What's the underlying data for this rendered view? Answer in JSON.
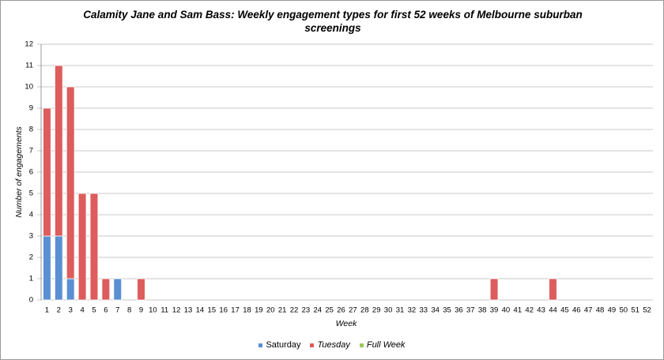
{
  "chart_data": {
    "type": "stacked_bar",
    "title": "Calamity Jane and Sam Bass: Weekly engagement types for first 52 weeks of Melbourne suburban screenings",
    "x_label": "Week",
    "y_label": "Number of engagements",
    "categories": [
      1,
      2,
      3,
      4,
      5,
      6,
      7,
      8,
      9,
      10,
      11,
      12,
      13,
      14,
      15,
      16,
      17,
      18,
      19,
      20,
      21,
      22,
      23,
      24,
      25,
      26,
      27,
      28,
      29,
      30,
      31,
      32,
      33,
      34,
      35,
      36,
      37,
      38,
      39,
      40,
      41,
      42,
      43,
      44,
      45,
      46,
      47,
      48,
      49,
      50,
      51,
      52
    ],
    "series": [
      {
        "name": "Saturday",
        "color": "#5b8fd3",
        "values": [
          3,
          3,
          1,
          0,
          0,
          0,
          1,
          0,
          0,
          0,
          0,
          0,
          0,
          0,
          0,
          0,
          0,
          0,
          0,
          0,
          0,
          0,
          0,
          0,
          0,
          0,
          0,
          0,
          0,
          0,
          0,
          0,
          0,
          0,
          0,
          0,
          0,
          0,
          0,
          0,
          0,
          0,
          0,
          0,
          0,
          0,
          0,
          0,
          0,
          0,
          0,
          0
        ]
      },
      {
        "name": "Tuesday",
        "color": "#dd5c5c",
        "values": [
          6,
          8,
          9,
          5,
          5,
          1,
          0,
          0,
          1,
          0,
          0,
          0,
          0,
          0,
          0,
          0,
          0,
          0,
          0,
          0,
          0,
          0,
          0,
          0,
          0,
          0,
          0,
          0,
          0,
          0,
          0,
          0,
          0,
          0,
          0,
          0,
          0,
          0,
          1,
          0,
          0,
          0,
          0,
          1,
          0,
          0,
          0,
          0,
          0,
          0,
          0,
          0
        ]
      },
      {
        "name": "Full Week",
        "color": "#9bc85c",
        "values": [
          0,
          0,
          0,
          0,
          0,
          0,
          0,
          0,
          0,
          0,
          0,
          0,
          0,
          0,
          0,
          0,
          0,
          0,
          0,
          0,
          0,
          0,
          0,
          0,
          0,
          0,
          0,
          0,
          0,
          0,
          0,
          0,
          0,
          0,
          0,
          0,
          0,
          0,
          0,
          0,
          0,
          0,
          0,
          0,
          0,
          0,
          0,
          0,
          0,
          0,
          0,
          0
        ]
      }
    ],
    "ylim": [
      0,
      12
    ],
    "yticks": [
      0,
      1,
      2,
      3,
      4,
      5,
      6,
      7,
      8,
      9,
      10,
      11,
      12
    ],
    "grid": true,
    "legend": "bottom"
  }
}
